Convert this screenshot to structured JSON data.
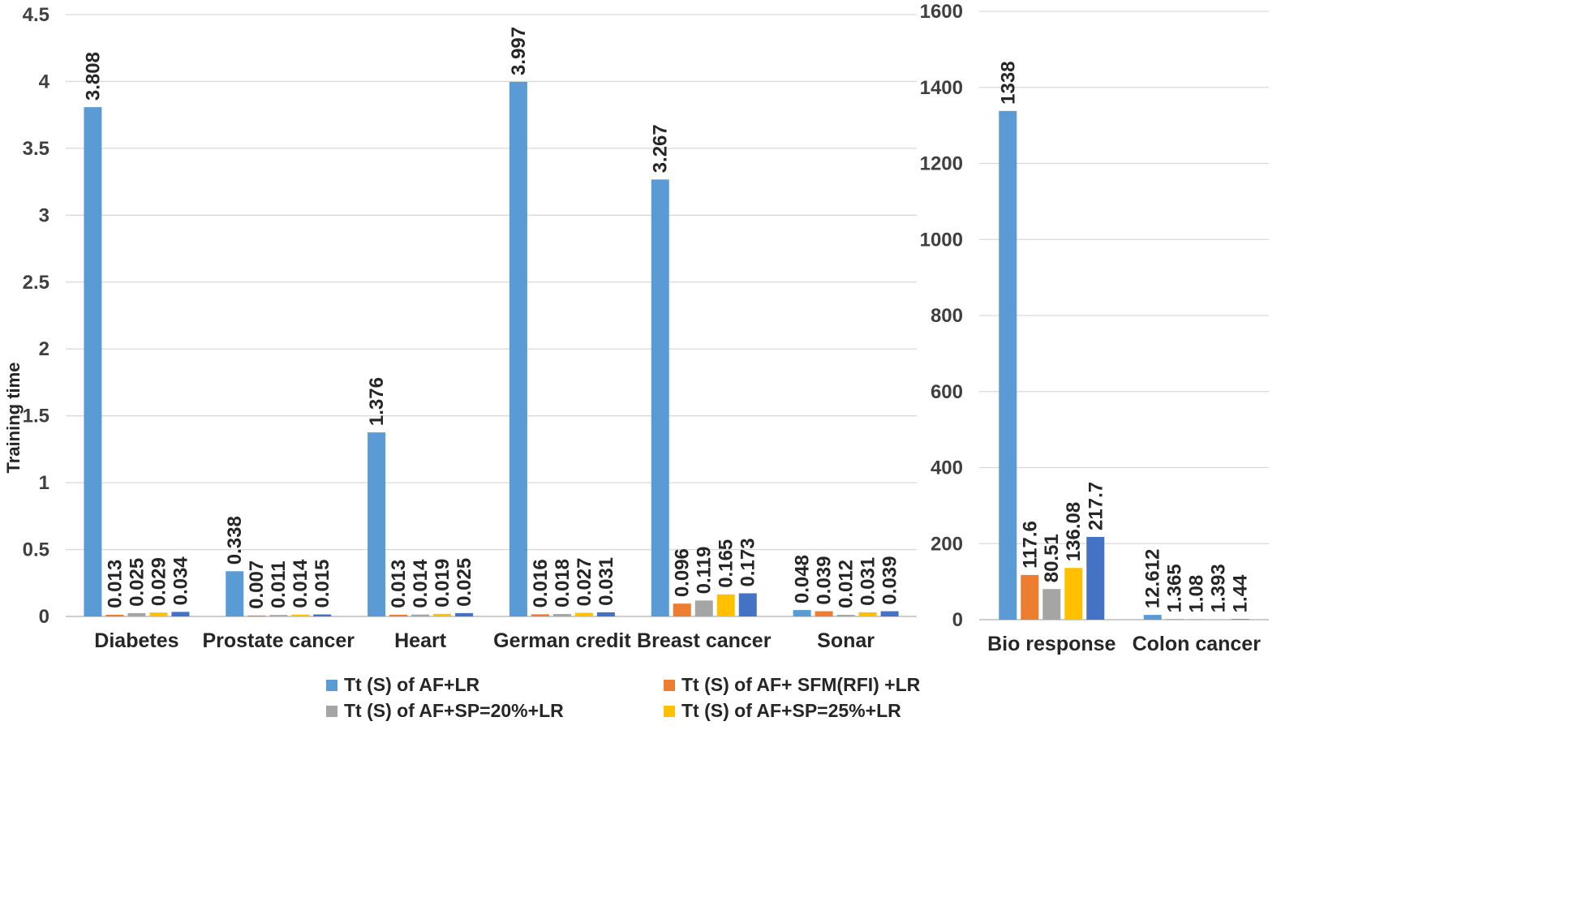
{
  "chart_data": [
    {
      "type": "bar",
      "ylabel": "Training time",
      "ylim": [
        0,
        4.5
      ],
      "yticks": [
        "0",
        "0.5",
        "1",
        "1.5",
        "2",
        "2.5",
        "3",
        "3.5",
        "4",
        "4.5"
      ],
      "grid": true,
      "categories": [
        "Diabetes",
        "Prostate cancer",
        "Heart",
        "German credit",
        "Breast cancer",
        "Sonar"
      ],
      "series": [
        {
          "name": "Tt (S) of AF+LR",
          "color": "#5B9BD5",
          "values": [
            3.808,
            0.338,
            1.376,
            3.997,
            3.267,
            0.048
          ],
          "labels": [
            "3.808",
            "0.338",
            "1.376",
            "3.997",
            "3.267",
            "0.048"
          ]
        },
        {
          "name": "Tt (S) of AF+ SFM(RFI) +LR",
          "color": "#ED7D31",
          "values": [
            0.013,
            0.007,
            0.013,
            0.016,
            0.096,
            0.039
          ],
          "labels": [
            "0.013",
            "0.007",
            "0.013",
            "0.016",
            "0.096",
            "0.039"
          ]
        },
        {
          "name": "Tt (S) of AF+SP=20%+LR",
          "color": "#A5A5A5",
          "values": [
            0.025,
            0.011,
            0.014,
            0.018,
            0.119,
            0.012
          ],
          "labels": [
            "0.025",
            "0.011",
            "0.014",
            "0.018",
            "0.119",
            "0.012"
          ]
        },
        {
          "name": "Tt (S) of AF+SP=25%+LR",
          "color": "#FFC000",
          "values": [
            0.029,
            0.014,
            0.019,
            0.027,
            0.165,
            0.031
          ],
          "labels": [
            "0.029",
            "0.014",
            "0.019",
            "0.027",
            "0.165",
            "0.031"
          ]
        },
        {
          "name": "",
          "color": "#4472C4",
          "values": [
            0.034,
            0.015,
            0.025,
            0.031,
            0.173,
            0.039
          ],
          "labels": [
            "0.034",
            "0.015",
            "0.025",
            "0.031",
            "0.173",
            "0.039"
          ]
        }
      ]
    },
    {
      "type": "bar",
      "ylim": [
        0,
        1600
      ],
      "yticks": [
        "0",
        "200",
        "400",
        "600",
        "800",
        "1000",
        "1200",
        "1400",
        "1600"
      ],
      "grid": true,
      "categories": [
        "Bio response",
        "Colon cancer"
      ],
      "series": [
        {
          "name": "Tt (S) of AF+LR",
          "color": "#5B9BD5",
          "values": [
            1338,
            12.612
          ],
          "labels": [
            "1338",
            "12.612"
          ]
        },
        {
          "name": "Tt (S) of AF+ SFM(RFI) +LR",
          "color": "#ED7D31",
          "values": [
            117.6,
            1.365
          ],
          "labels": [
            "117.6",
            "1.365"
          ]
        },
        {
          "name": "Tt (S) of AF+SP=20%+LR",
          "color": "#A5A5A5",
          "values": [
            80.51,
            1.08
          ],
          "labels": [
            "80.51",
            "1.08"
          ]
        },
        {
          "name": "Tt (S) of AF+SP=25%+LR",
          "color": "#FFC000",
          "values": [
            136.08,
            1.393
          ],
          "labels": [
            "136.08",
            "1.393"
          ]
        },
        {
          "name": "",
          "color": "#4472C4",
          "values": [
            217.7,
            1.44
          ],
          "labels": [
            "217.7",
            "1.44"
          ]
        }
      ]
    }
  ],
  "legend": {
    "position": "bottom",
    "items": [
      {
        "label": "Tt (S) of AF+LR",
        "color": "#5B9BD5"
      },
      {
        "label": "Tt (S) of AF+ SFM(RFI) +LR",
        "color": "#ED7D31"
      },
      {
        "label": "Tt (S) of AF+SP=20%+LR",
        "color": "#A5A5A5"
      },
      {
        "label": "Tt (S) of AF+SP=25%+LR",
        "color": "#FFC000"
      }
    ]
  }
}
